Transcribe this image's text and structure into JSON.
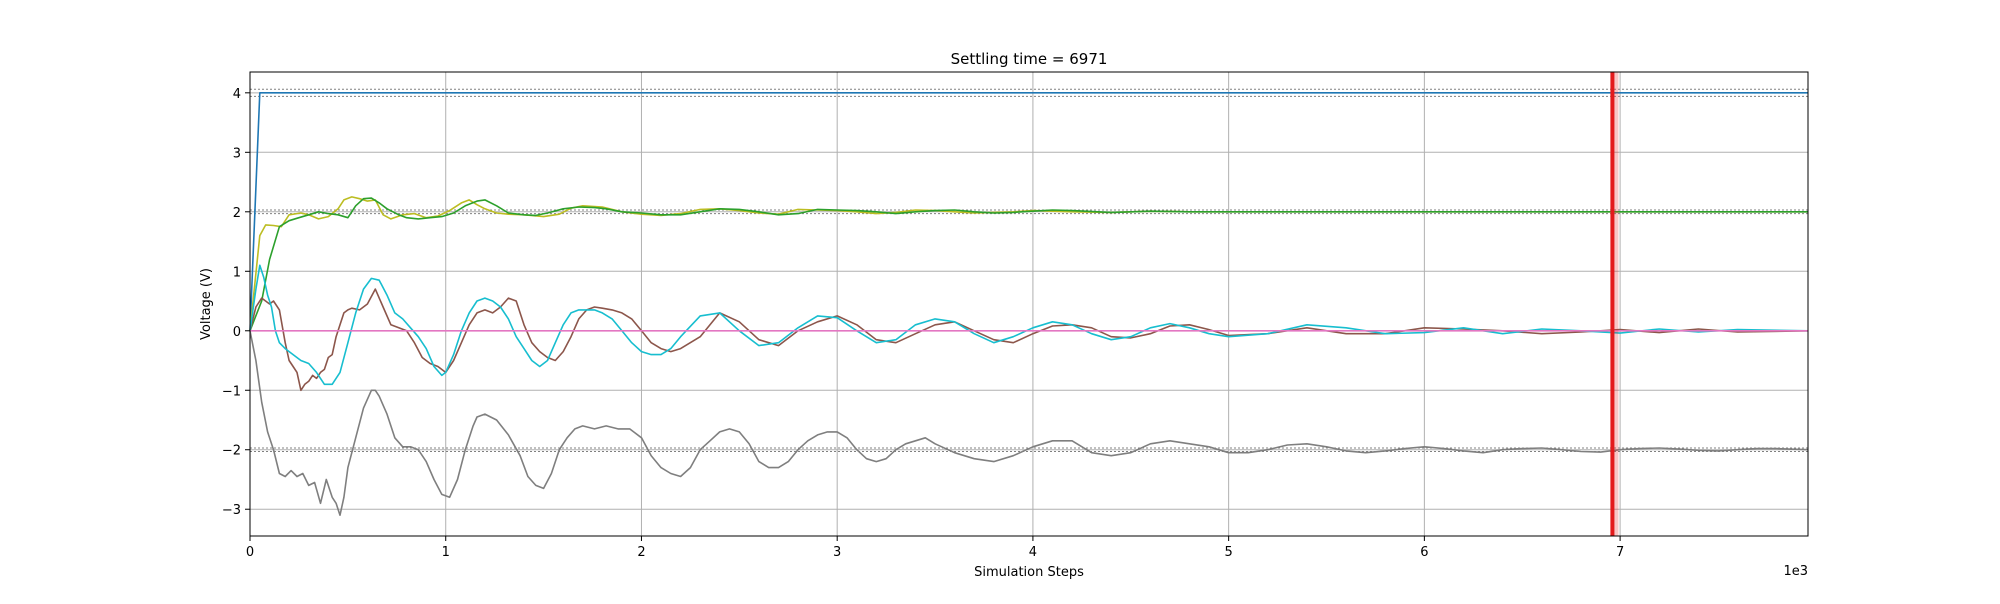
{
  "chart_data": {
    "type": "line",
    "title": "Settling time = 6971",
    "xlabel": "Simulation Steps",
    "ylabel": "Voltage (V)",
    "x_multiplier_label": "1e3",
    "xlim": [
      0,
      7960
    ],
    "ylim": [
      -3.45,
      4.35
    ],
    "x_ticks": [
      0,
      1000,
      2000,
      3000,
      4000,
      5000,
      6000,
      7000
    ],
    "x_tick_labels": [
      "0",
      "1",
      "2",
      "3",
      "4",
      "5",
      "6",
      "7"
    ],
    "y_ticks": [
      -3,
      -2,
      -1,
      0,
      1,
      2,
      3,
      4
    ],
    "y_tick_labels": [
      "−3",
      "−2",
      "−1",
      "0",
      "1",
      "2",
      "3",
      "4"
    ],
    "grid": true,
    "settling_time": 6971,
    "settling_marker_color": "#e31a1c",
    "tolerance_bands": [
      {
        "target": 4,
        "lower": 3.94,
        "upper": 4.06
      },
      {
        "target": 2,
        "lower": 1.97,
        "upper": 2.03
      },
      {
        "target": -2,
        "lower": -2.03,
        "upper": -1.97
      }
    ],
    "series": [
      {
        "color": "#1f77b4",
        "x": [
          0,
          50,
          60,
          7960
        ],
        "y": [
          0,
          4.0,
          4.0,
          4.0
        ]
      },
      {
        "color": "#bcbd22",
        "x": [
          0,
          50,
          80,
          120,
          160,
          200,
          260,
          300,
          350,
          400,
          450,
          480,
          520,
          560,
          600,
          640,
          680,
          720,
          780,
          840,
          900,
          960,
          1020,
          1080,
          1120,
          1160,
          1200,
          1260,
          1320,
          1400,
          1500,
          1580,
          1640,
          1700,
          1800,
          1900,
          2000,
          2100,
          2200,
          2300,
          2400,
          2500,
          2600,
          2700,
          2800,
          2900,
          3000,
          3100,
          3200,
          3300,
          3400,
          3500,
          3600,
          3700,
          3800,
          3900,
          4000,
          4200,
          4400,
          4600,
          4800,
          5000,
          5500,
          6000,
          6500,
          7000,
          7500,
          7960
        ],
        "y": [
          0,
          1.6,
          1.78,
          1.77,
          1.75,
          1.95,
          1.98,
          1.95,
          1.88,
          1.92,
          2.05,
          2.2,
          2.25,
          2.22,
          2.18,
          2.2,
          1.95,
          1.88,
          1.95,
          1.97,
          1.9,
          1.93,
          2.02,
          2.15,
          2.2,
          2.12,
          2.05,
          1.98,
          1.96,
          1.95,
          1.92,
          1.96,
          2.06,
          2.1,
          2.08,
          2.0,
          1.96,
          1.94,
          1.97,
          2.04,
          2.05,
          2.02,
          1.98,
          1.96,
          2.04,
          2.03,
          2.02,
          2.0,
          1.97,
          1.99,
          2.03,
          2.02,
          2.0,
          1.98,
          1.99,
          2.0,
          2.02,
          2.0,
          1.99,
          2.01,
          2.0,
          2.0,
          2.0,
          2.0,
          2.0,
          2.0,
          2.0,
          2.0
        ]
      },
      {
        "color": "#2ca02c",
        "x": [
          0,
          60,
          100,
          150,
          200,
          250,
          300,
          350,
          400,
          450,
          500,
          540,
          580,
          620,
          660,
          700,
          760,
          800,
          860,
          920,
          980,
          1040,
          1100,
          1160,
          1200,
          1260,
          1320,
          1400,
          1460,
          1520,
          1600,
          1680,
          1760,
          1820,
          1900,
          2000,
          2100,
          2200,
          2300,
          2400,
          2500,
          2600,
          2700,
          2800,
          2900,
          3000,
          3100,
          3200,
          3300,
          3400,
          3500,
          3600,
          3700,
          3800,
          3900,
          4000,
          4100,
          4200,
          4400,
          4600,
          4800,
          5000,
          5500,
          6000,
          6500,
          7000,
          7500,
          7960
        ],
        "y": [
          0,
          0.5,
          1.2,
          1.75,
          1.85,
          1.9,
          1.95,
          2.0,
          1.97,
          1.95,
          1.9,
          2.1,
          2.22,
          2.23,
          2.15,
          2.05,
          1.95,
          1.9,
          1.88,
          1.9,
          1.92,
          1.98,
          2.1,
          2.18,
          2.2,
          2.1,
          1.98,
          1.95,
          1.94,
          1.98,
          2.05,
          2.08,
          2.07,
          2.05,
          2.0,
          1.98,
          1.95,
          1.95,
          2.0,
          2.05,
          2.04,
          2.0,
          1.95,
          1.97,
          2.04,
          2.03,
          2.02,
          2.0,
          1.97,
          2.0,
          2.02,
          2.03,
          2.0,
          1.98,
          1.99,
          2.01,
          2.03,
          2.02,
          1.99,
          2.01,
          2.0,
          2.0,
          2.0,
          2.0,
          2.0,
          2.0,
          2.0,
          2.0
        ]
      },
      {
        "color": "#8c564b",
        "x": [
          0,
          30,
          60,
          100,
          120,
          150,
          180,
          200,
          220,
          240,
          260,
          280,
          300,
          320,
          340,
          360,
          380,
          400,
          420,
          440,
          460,
          480,
          500,
          520,
          560,
          600,
          640,
          680,
          720,
          760,
          800,
          840,
          880,
          920,
          960,
          1000,
          1040,
          1080,
          1120,
          1160,
          1200,
          1240,
          1280,
          1320,
          1360,
          1400,
          1440,
          1480,
          1520,
          1560,
          1600,
          1640,
          1680,
          1720,
          1760,
          1800,
          1850,
          1900,
          1950,
          2000,
          2050,
          2100,
          2150,
          2200,
          2300,
          2400,
          2500,
          2600,
          2700,
          2800,
          2900,
          3000,
          3100,
          3200,
          3300,
          3400,
          3500,
          3600,
          3700,
          3800,
          3900,
          4000,
          4100,
          4200,
          4300,
          4400,
          4500,
          4600,
          4700,
          4800,
          4900,
          5000,
          5200,
          5400,
          5600,
          5800,
          6000,
          6200,
          6400,
          6600,
          6800,
          7000,
          7200,
          7400,
          7600,
          7960
        ],
        "y": [
          0,
          0.4,
          0.55,
          0.45,
          0.5,
          0.35,
          -0.2,
          -0.5,
          -0.6,
          -0.7,
          -1.0,
          -0.9,
          -0.85,
          -0.75,
          -0.8,
          -0.7,
          -0.65,
          -0.45,
          -0.4,
          -0.1,
          0.1,
          0.3,
          0.35,
          0.38,
          0.35,
          0.45,
          0.7,
          0.4,
          0.1,
          0.05,
          0.0,
          -0.2,
          -0.45,
          -0.55,
          -0.6,
          -0.7,
          -0.5,
          -0.2,
          0.1,
          0.3,
          0.35,
          0.3,
          0.4,
          0.55,
          0.5,
          0.1,
          -0.2,
          -0.35,
          -0.45,
          -0.5,
          -0.35,
          -0.1,
          0.2,
          0.35,
          0.4,
          0.38,
          0.35,
          0.3,
          0.2,
          0.0,
          -0.2,
          -0.3,
          -0.35,
          -0.3,
          -0.1,
          0.3,
          0.15,
          -0.15,
          -0.25,
          0.0,
          0.15,
          0.25,
          0.1,
          -0.15,
          -0.2,
          -0.05,
          0.1,
          0.15,
          0.0,
          -0.15,
          -0.2,
          -0.05,
          0.08,
          0.1,
          0.05,
          -0.1,
          -0.12,
          -0.05,
          0.08,
          0.1,
          0.02,
          -0.08,
          -0.05,
          0.05,
          -0.05,
          -0.05,
          0.05,
          0.03,
          0.0,
          -0.05,
          -0.02,
          0.02,
          -0.03,
          0.03,
          -0.02,
          0.0
        ]
      },
      {
        "color": "#17becf",
        "x": [
          0,
          30,
          50,
          70,
          90,
          110,
          130,
          150,
          180,
          220,
          260,
          300,
          340,
          380,
          420,
          460,
          500,
          540,
          580,
          620,
          660,
          700,
          740,
          780,
          820,
          860,
          900,
          940,
          980,
          1000,
          1040,
          1080,
          1120,
          1160,
          1200,
          1240,
          1280,
          1320,
          1360,
          1400,
          1440,
          1480,
          1520,
          1560,
          1600,
          1640,
          1680,
          1720,
          1760,
          1800,
          1850,
          1900,
          1950,
          2000,
          2050,
          2100,
          2150,
          2200,
          2300,
          2400,
          2500,
          2600,
          2700,
          2800,
          2900,
          3000,
          3100,
          3200,
          3300,
          3400,
          3500,
          3600,
          3700,
          3800,
          3900,
          4000,
          4100,
          4200,
          4300,
          4400,
          4500,
          4600,
          4700,
          4800,
          4900,
          5000,
          5200,
          5400,
          5600,
          5800,
          6000,
          6200,
          6400,
          6600,
          6800,
          7000,
          7200,
          7400,
          7600,
          7960
        ],
        "y": [
          0,
          0.7,
          1.1,
          0.9,
          0.6,
          0.4,
          0.0,
          -0.2,
          -0.3,
          -0.4,
          -0.5,
          -0.55,
          -0.7,
          -0.9,
          -0.9,
          -0.7,
          -0.2,
          0.3,
          0.7,
          0.88,
          0.85,
          0.6,
          0.3,
          0.2,
          0.05,
          -0.1,
          -0.3,
          -0.6,
          -0.75,
          -0.7,
          -0.4,
          0.0,
          0.3,
          0.5,
          0.55,
          0.5,
          0.4,
          0.2,
          -0.1,
          -0.3,
          -0.5,
          -0.6,
          -0.5,
          -0.2,
          0.1,
          0.3,
          0.35,
          0.35,
          0.35,
          0.3,
          0.2,
          0.0,
          -0.2,
          -0.35,
          -0.4,
          -0.4,
          -0.3,
          -0.1,
          0.25,
          0.3,
          0.0,
          -0.25,
          -0.2,
          0.05,
          0.25,
          0.22,
          0.0,
          -0.2,
          -0.15,
          0.1,
          0.2,
          0.15,
          -0.05,
          -0.2,
          -0.1,
          0.05,
          0.15,
          0.1,
          -0.05,
          -0.15,
          -0.1,
          0.05,
          0.12,
          0.05,
          -0.05,
          -0.1,
          -0.05,
          0.1,
          0.05,
          -0.05,
          -0.03,
          0.05,
          -0.05,
          0.03,
          0.0,
          -0.04,
          0.03,
          -0.02,
          0.02,
          0.0
        ]
      },
      {
        "color": "#e377c2",
        "x": [
          0,
          7960
        ],
        "y": [
          0,
          0
        ]
      },
      {
        "color": "#7f7f7f",
        "x": [
          0,
          30,
          60,
          90,
          120,
          150,
          180,
          210,
          240,
          270,
          300,
          330,
          360,
          390,
          420,
          440,
          460,
          480,
          500,
          540,
          580,
          620,
          640,
          660,
          700,
          740,
          780,
          820,
          860,
          900,
          940,
          980,
          1020,
          1060,
          1100,
          1140,
          1160,
          1200,
          1260,
          1320,
          1380,
          1420,
          1460,
          1500,
          1540,
          1580,
          1620,
          1660,
          1700,
          1760,
          1820,
          1880,
          1940,
          2000,
          2050,
          2100,
          2150,
          2200,
          2250,
          2300,
          2350,
          2400,
          2450,
          2500,
          2550,
          2600,
          2650,
          2700,
          2750,
          2800,
          2850,
          2900,
          2950,
          3000,
          3050,
          3100,
          3150,
          3200,
          3250,
          3300,
          3350,
          3400,
          3450,
          3500,
          3600,
          3700,
          3800,
          3900,
          4000,
          4100,
          4200,
          4300,
          4400,
          4500,
          4600,
          4700,
          4800,
          4900,
          5000,
          5100,
          5200,
          5300,
          5400,
          5500,
          5600,
          5700,
          5800,
          5900,
          6000,
          6100,
          6200,
          6300,
          6400,
          6500,
          6600,
          6700,
          6800,
          6900,
          7000,
          7100,
          7200,
          7300,
          7400,
          7500,
          7600,
          7700,
          7800,
          7960
        ],
        "y": [
          0,
          -0.5,
          -1.2,
          -1.7,
          -2.0,
          -2.4,
          -2.45,
          -2.35,
          -2.45,
          -2.4,
          -2.6,
          -2.55,
          -2.9,
          -2.5,
          -2.8,
          -2.9,
          -3.1,
          -2.8,
          -2.3,
          -1.8,
          -1.3,
          -1.0,
          -1.0,
          -1.1,
          -1.4,
          -1.8,
          -1.95,
          -1.95,
          -2.0,
          -2.2,
          -2.5,
          -2.75,
          -2.8,
          -2.5,
          -2.0,
          -1.6,
          -1.45,
          -1.4,
          -1.5,
          -1.75,
          -2.1,
          -2.45,
          -2.6,
          -2.65,
          -2.4,
          -2.0,
          -1.8,
          -1.65,
          -1.6,
          -1.65,
          -1.6,
          -1.65,
          -1.65,
          -1.8,
          -2.1,
          -2.3,
          -2.4,
          -2.45,
          -2.3,
          -2.0,
          -1.85,
          -1.7,
          -1.65,
          -1.7,
          -1.9,
          -2.2,
          -2.3,
          -2.3,
          -2.2,
          -2.0,
          -1.85,
          -1.75,
          -1.7,
          -1.7,
          -1.8,
          -2.0,
          -2.15,
          -2.2,
          -2.15,
          -2.0,
          -1.9,
          -1.85,
          -1.8,
          -1.9,
          -2.05,
          -2.15,
          -2.2,
          -2.1,
          -1.95,
          -1.85,
          -1.85,
          -2.05,
          -2.1,
          -2.05,
          -1.9,
          -1.85,
          -1.9,
          -1.95,
          -2.05,
          -2.05,
          -2.0,
          -1.92,
          -1.9,
          -1.95,
          -2.02,
          -2.05,
          -2.02,
          -1.98,
          -1.95,
          -1.98,
          -2.02,
          -2.05,
          -2.0,
          -1.98,
          -1.97,
          -2.0,
          -2.03,
          -2.04,
          -2.0,
          -1.98,
          -1.97,
          -1.99,
          -2.01,
          -2.02,
          -2.0,
          -1.98,
          -1.98,
          -2.0
        ]
      }
    ]
  }
}
